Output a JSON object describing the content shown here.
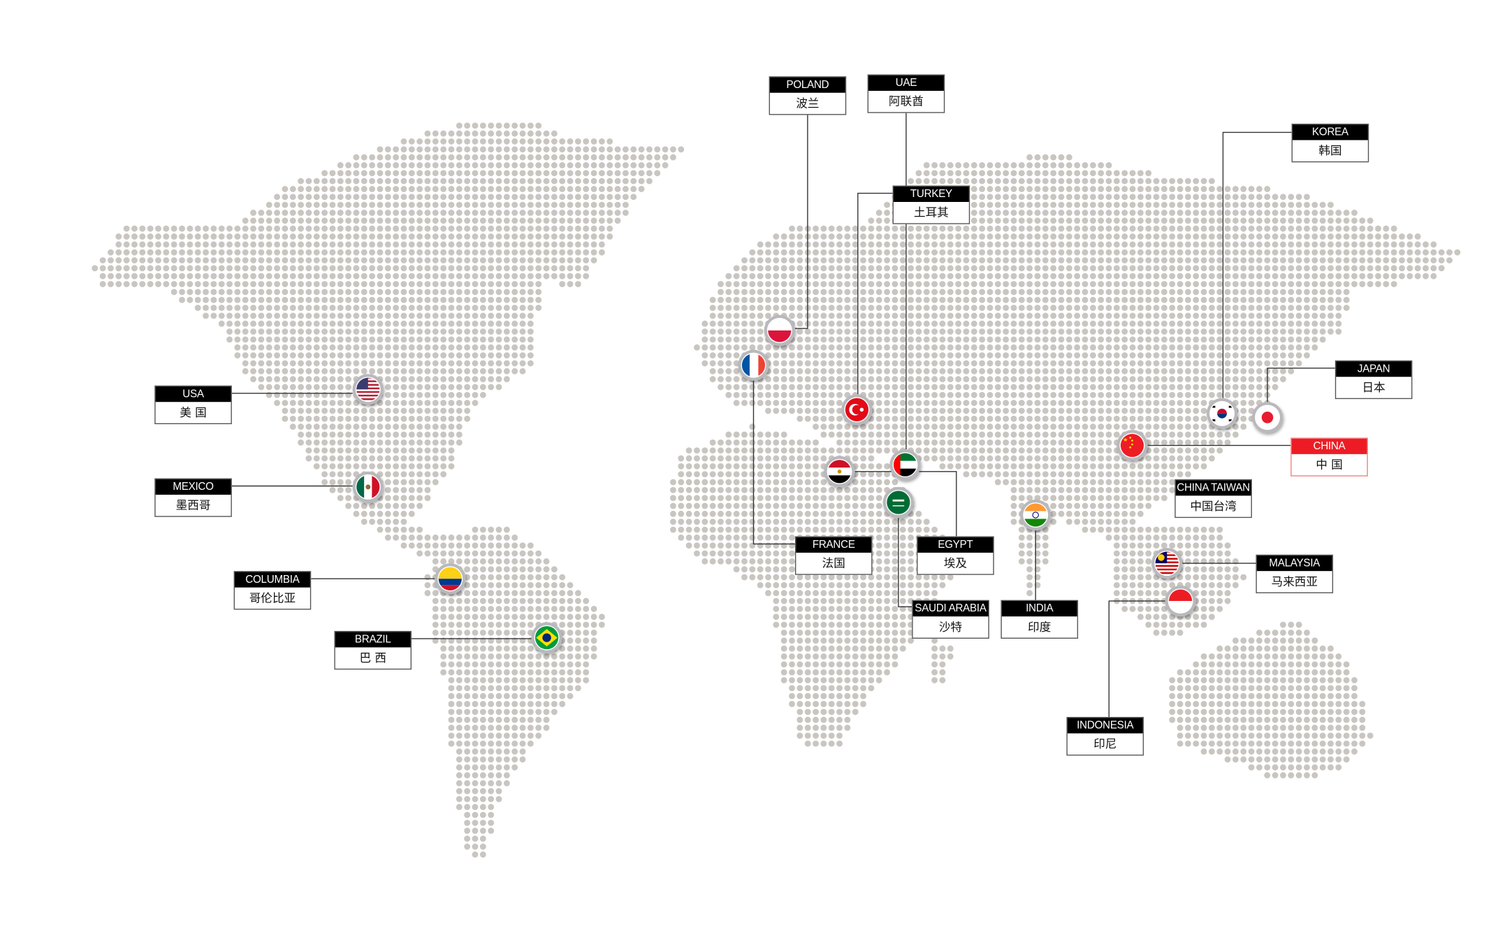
{
  "colors": {
    "dot": "#c9c5c0",
    "line": "#333333",
    "label_header": "#000000",
    "highlight": "#ed1c24",
    "flag_ring": "#b9b9bd"
  },
  "locations": [
    {
      "id": "poland",
      "en": "POLAND",
      "zh": "波兰",
      "flag": "poland-flag-icon",
      "highlight": false
    },
    {
      "id": "uae",
      "en": "UAE",
      "zh": "阿联酋",
      "flag": "uae-flag-icon",
      "highlight": false
    },
    {
      "id": "turkey",
      "en": "TURKEY",
      "zh": "土耳其",
      "flag": "turkey-flag-icon",
      "highlight": false
    },
    {
      "id": "korea",
      "en": "KOREA",
      "zh": "韩国",
      "flag": "korea-flag-icon",
      "highlight": false
    },
    {
      "id": "japan",
      "en": "JAPAN",
      "zh": "日本",
      "flag": "japan-flag-icon",
      "highlight": false
    },
    {
      "id": "china",
      "en": "CHINA",
      "zh": "中 国",
      "flag": "china-flag-icon",
      "highlight": true
    },
    {
      "id": "taiwan",
      "en": "CHINA TAIWAN",
      "zh": "中国台湾",
      "flag": "",
      "highlight": false
    },
    {
      "id": "malaysia",
      "en": "MALAYSIA",
      "zh": "马来西亚",
      "flag": "malaysia-flag-icon",
      "highlight": false
    },
    {
      "id": "indonesia",
      "en": "INDONESIA",
      "zh": "印尼",
      "flag": "indonesia-flag-icon",
      "highlight": false
    },
    {
      "id": "india",
      "en": "INDIA",
      "zh": "印度",
      "flag": "india-flag-icon",
      "highlight": false
    },
    {
      "id": "saudi",
      "en": "SAUDI ARABIA",
      "zh": "沙特",
      "flag": "saudi-arabia-flag-icon",
      "highlight": false
    },
    {
      "id": "egypt",
      "en": "EGYPT",
      "zh": "埃及",
      "flag": "egypt-flag-icon",
      "highlight": false
    },
    {
      "id": "france",
      "en": "FRANCE",
      "zh": "法国",
      "flag": "france-flag-icon",
      "highlight": false
    },
    {
      "id": "usa",
      "en": "USA",
      "zh": "美 国",
      "flag": "usa-flag-icon",
      "highlight": false
    },
    {
      "id": "mexico",
      "en": "MEXICO",
      "zh": "墨西哥",
      "flag": "mexico-flag-icon",
      "highlight": false
    },
    {
      "id": "columbia",
      "en": "COLUMBIA",
      "zh": "哥伦比亚",
      "flag": "colombia-flag-icon",
      "highlight": false
    },
    {
      "id": "brazil",
      "en": "BRAZIL",
      "zh": "巴 西",
      "flag": "brazil-flag-icon",
      "highlight": false
    }
  ]
}
